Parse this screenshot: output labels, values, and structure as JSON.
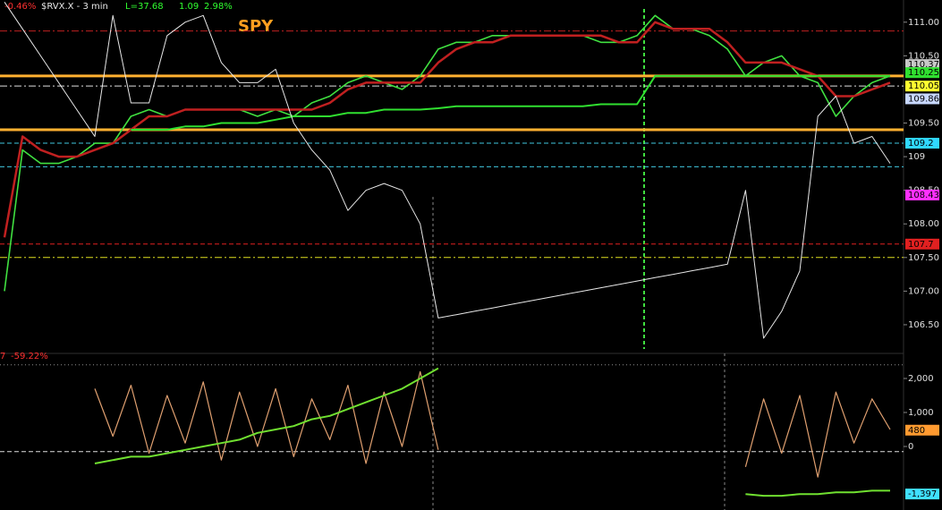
{
  "chart_data": [
    {
      "type": "line",
      "title": "SPY",
      "header_texts": [
        {
          "text": "-0.46%",
          "color": "#ff3030"
        },
        {
          "text": "$RVX.X - 3 min",
          "color": "#e8e8e8"
        },
        {
          "text": "L=37.68",
          "color": "#30ff30"
        },
        {
          "text": "1.09",
          "color": "#30ff30"
        },
        {
          "text": "2.98%",
          "color": "#30ff30"
        }
      ],
      "ylim": [
        106.14,
        111.33
      ],
      "yticks": [
        {
          "value": 111,
          "label": "111.00"
        },
        {
          "value": 110.5,
          "label": "110.50"
        },
        {
          "value": 109.5,
          "label": "109.50"
        },
        109,
        {
          "value": 108.5,
          "label": "108.50"
        },
        {
          "value": 108,
          "label": "108.00"
        },
        {
          "value": 107.5,
          "label": "107.50"
        },
        {
          "value": 107,
          "label": "107.00"
        },
        {
          "value": 106.5,
          "label": "106.50"
        }
      ],
      "levels": [
        {
          "value": 110.87,
          "color": "#c02020",
          "style": "dashdot",
          "width": 1
        },
        {
          "value": 110.2,
          "color": "#ffb030",
          "style": "solid",
          "width": 3
        },
        {
          "value": 109.4,
          "color": "#ffb030",
          "style": "solid",
          "width": 3
        },
        {
          "value": 110.05,
          "color": "#e0e0e0",
          "style": "dashdot",
          "width": 1
        },
        {
          "value": 109.2,
          "color": "#40c8e0",
          "style": "dash",
          "width": 1
        },
        {
          "value": 108.85,
          "color": "#40c8e0",
          "style": "dash",
          "width": 1
        },
        {
          "value": 107.7,
          "color": "#e02020",
          "style": "dash",
          "width": 1
        },
        {
          "value": 107.5,
          "color": "#e0e020",
          "style": "dashdot",
          "width": 1
        }
      ],
      "price_labels": [
        {
          "value": 110.37,
          "color": "#c8c8c8"
        },
        {
          "value": 110.25,
          "color": "#30e030"
        },
        {
          "value": 110.05,
          "color": "#ffff30"
        },
        {
          "value": 109.86,
          "color": "#c8d8ff"
        },
        {
          "value": 109.2,
          "color": "#30d8ff"
        },
        {
          "value": 108.43,
          "color": "#ff30ff"
        },
        {
          "value": 107.7,
          "color": "#e02020"
        }
      ],
      "series": [
        {
          "name": "SPY",
          "color": "#40e040",
          "width": 1.6,
          "values": [
            107.0,
            109.1,
            108.9,
            108.9,
            109.0,
            109.2,
            109.2,
            109.6,
            109.7,
            109.6,
            109.7,
            109.7,
            109.7,
            109.7,
            109.6,
            109.7,
            109.6,
            109.8,
            109.9,
            110.1,
            110.2,
            110.1,
            110.0,
            110.2,
            110.6,
            110.7,
            110.7,
            110.8,
            110.8,
            110.8,
            110.8,
            110.8,
            110.8,
            110.7,
            110.7,
            110.8,
            111.1,
            110.9,
            110.9,
            110.8,
            110.6,
            110.2,
            110.4,
            110.5,
            110.2,
            110.1,
            109.6,
            109.9,
            110.1,
            110.2
          ]
        },
        {
          "name": "MA",
          "color": "#c02020",
          "width": 2.5,
          "values": [
            107.8,
            109.3,
            109.1,
            109.0,
            109.0,
            109.1,
            109.2,
            109.4,
            109.6,
            109.6,
            109.7,
            109.7,
            109.7,
            109.7,
            109.7,
            109.7,
            109.7,
            109.7,
            109.8,
            110.0,
            110.1,
            110.1,
            110.1,
            110.1,
            110.4,
            110.6,
            110.7,
            110.7,
            110.8,
            110.8,
            110.8,
            110.8,
            110.8,
            110.8,
            110.7,
            110.7,
            111.0,
            110.9,
            110.9,
            110.9,
            110.7,
            110.4,
            110.4,
            110.4,
            110.3,
            110.2,
            109.9,
            109.9,
            110.0,
            110.1
          ]
        },
        {
          "name": "Trend",
          "color": "#30e030",
          "width": 2,
          "values": [
            null,
            null,
            null,
            null,
            null,
            null,
            null,
            109.4,
            109.4,
            109.4,
            109.45,
            109.45,
            109.5,
            109.5,
            109.5,
            109.55,
            109.6,
            109.6,
            109.6,
            109.65,
            109.65,
            109.7,
            109.7,
            109.7,
            109.72,
            109.75,
            109.75,
            109.75,
            109.75,
            109.75,
            109.75,
            109.75,
            109.75,
            109.78,
            109.78,
            109.78,
            110.2,
            110.2,
            110.2,
            110.2,
            110.2,
            110.2,
            110.2,
            110.2,
            110.2,
            110.2,
            110.2,
            110.2,
            110.2,
            110.2
          ]
        },
        {
          "name": "$RVX.X",
          "color": "#e8e8e8",
          "width": 1,
          "values": [
            111.3,
            110.9,
            110.5,
            110.1,
            109.7,
            109.3,
            111.1,
            109.8,
            109.8,
            110.8,
            111.0,
            111.1,
            110.4,
            110.1,
            110.1,
            110.3,
            109.5,
            109.1,
            108.8,
            108.2,
            108.5,
            108.6,
            108.5,
            108.0,
            106.6,
            106.65,
            106.7,
            106.75,
            106.8,
            106.85,
            106.9,
            106.95,
            107.0,
            107.05,
            107.1,
            107.15,
            107.2,
            107.25,
            107.3,
            107.35,
            107.4,
            108.5,
            106.3,
            106.7,
            107.3,
            109.6,
            109.9,
            109.2,
            109.3,
            108.9
          ]
        }
      ]
    },
    {
      "type": "line",
      "header_texts": [
        {
          "text": "7",
          "color": "#ff3030"
        },
        {
          "text": "-59.22%",
          "color": "#ff3030"
        }
      ],
      "ylim": [
        -1868,
        2605
      ],
      "yticks": [
        {
          "value": 2000,
          "label": "2,000"
        },
        {
          "value": 1000,
          "label": "1,000"
        },
        0
      ],
      "levels": [
        {
          "value": 2400,
          "color": "#909090",
          "style": "dot",
          "width": 1
        },
        {
          "value": -150,
          "color": "#e0e0e0",
          "style": "dash",
          "width": 1
        }
      ],
      "price_labels": [
        {
          "value": 480,
          "color": "#ff9a30"
        },
        {
          "value": -1397,
          "label": "-1,397",
          "color": "#40e0ff"
        }
      ],
      "series": [
        {
          "name": "Oscillator",
          "color": "#e0a070",
          "width": 1.2,
          "values": [
            null,
            null,
            null,
            null,
            null,
            1700,
            300,
            1800,
            -200,
            1500,
            100,
            1900,
            -400,
            1600,
            0,
            1700,
            -300,
            1400,
            200,
            1800,
            -500,
            1600,
            0,
            2200,
            -100,
            null,
            null,
            null,
            null,
            null,
            null,
            null,
            null,
            null,
            null,
            null,
            null,
            null,
            null,
            null,
            null,
            -600,
            1400,
            -200,
            1500,
            -900,
            1600,
            100,
            1400,
            500
          ]
        },
        {
          "name": "Cumulative",
          "color": "#70e030",
          "width": 2,
          "values": [
            null,
            null,
            null,
            null,
            null,
            -500,
            -400,
            -300,
            -300,
            -200,
            -100,
            0,
            100,
            200,
            400,
            500,
            600,
            800,
            900,
            1100,
            1300,
            1500,
            1700,
            2000,
            2300,
            null,
            null,
            null,
            null,
            null,
            null,
            null,
            null,
            null,
            null,
            null,
            null,
            null,
            null,
            null,
            null,
            -1400,
            -1450,
            -1450,
            -1400,
            -1400,
            -1350,
            -1350,
            -1300,
            -1300
          ]
        }
      ]
    }
  ]
}
